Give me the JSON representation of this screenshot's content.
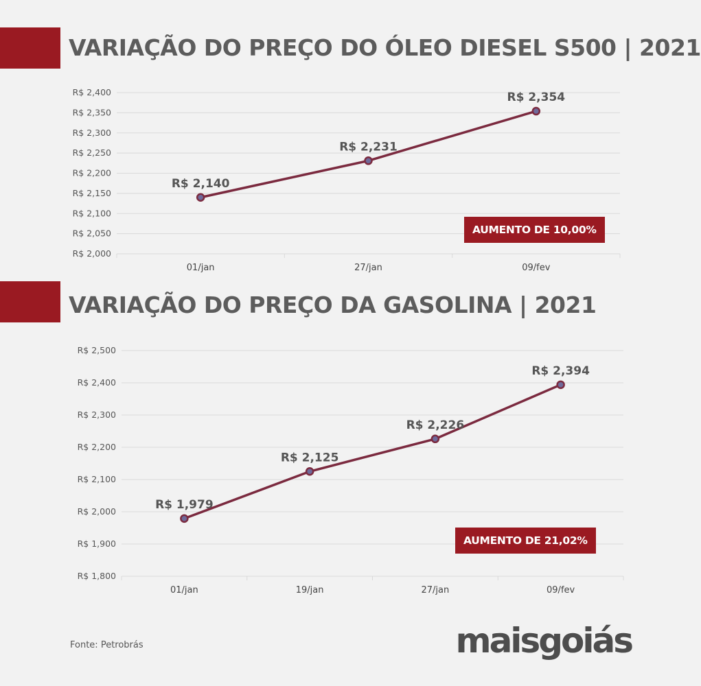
{
  "charts": [
    {
      "title": "VARIAÇÃO DO PREÇO DO ÓLEO DIESEL S500 | 2021",
      "badge": "AUMENTO DE 10,00%",
      "chart_data": {
        "type": "line",
        "categories": [
          "01/jan",
          "27/jan",
          "09/fev"
        ],
        "values": [
          2.14,
          2.231,
          2.354
        ],
        "data_labels": [
          "R$ 2,140",
          "R$ 2,231",
          "R$ 2,354"
        ],
        "yticks": [
          2.0,
          2.05,
          2.1,
          2.15,
          2.2,
          2.25,
          2.3,
          2.35,
          2.4
        ],
        "ytick_labels": [
          "R$ 2,000",
          "R$ 2,050",
          "R$ 2,100",
          "R$ 2,150",
          "R$ 2,200",
          "R$ 2,250",
          "R$ 2,300",
          "R$ 2,350",
          "R$ 2,400"
        ],
        "ylim": [
          2.0,
          2.4
        ],
        "title": "VARIAÇÃO DO PREÇO DO ÓLEO DIESEL S500 | 2021",
        "xlabel": "",
        "ylabel": "",
        "grid": true,
        "line_color": "#7b2a3f"
      }
    },
    {
      "title": "VARIAÇÃO DO PREÇO DA GASOLINA | 2021",
      "badge": "AUMENTO DE 21,02%",
      "chart_data": {
        "type": "line",
        "categories": [
          "01/jan",
          "19/jan",
          "27/jan",
          "09/fev"
        ],
        "values": [
          1.979,
          2.125,
          2.226,
          2.394
        ],
        "data_labels": [
          "R$ 1,979",
          "R$ 2,125",
          "R$ 2,226",
          "R$ 2,394"
        ],
        "yticks": [
          1.8,
          1.9,
          2.0,
          2.1,
          2.2,
          2.3,
          2.4,
          2.5
        ],
        "ytick_labels": [
          "R$ 1,800",
          "R$ 1,900",
          "R$ 2,000",
          "R$ 2,100",
          "R$ 2,200",
          "R$ 2,300",
          "R$ 2,400",
          "R$ 2,500"
        ],
        "ylim": [
          1.8,
          2.5
        ],
        "title": "VARIAÇÃO DO PREÇO DA GASOLINA | 2021",
        "xlabel": "",
        "ylabel": "",
        "grid": true,
        "line_color": "#7b2a3f"
      }
    }
  ],
  "source": "Fonte: Petrobrás",
  "logo": {
    "part1": "mais",
    "part2": "goiás"
  },
  "colors": {
    "accent": "#9a1a22",
    "line": "#7b2a3f",
    "text": "#5c5c5c",
    "background": "#f2f2f2"
  }
}
